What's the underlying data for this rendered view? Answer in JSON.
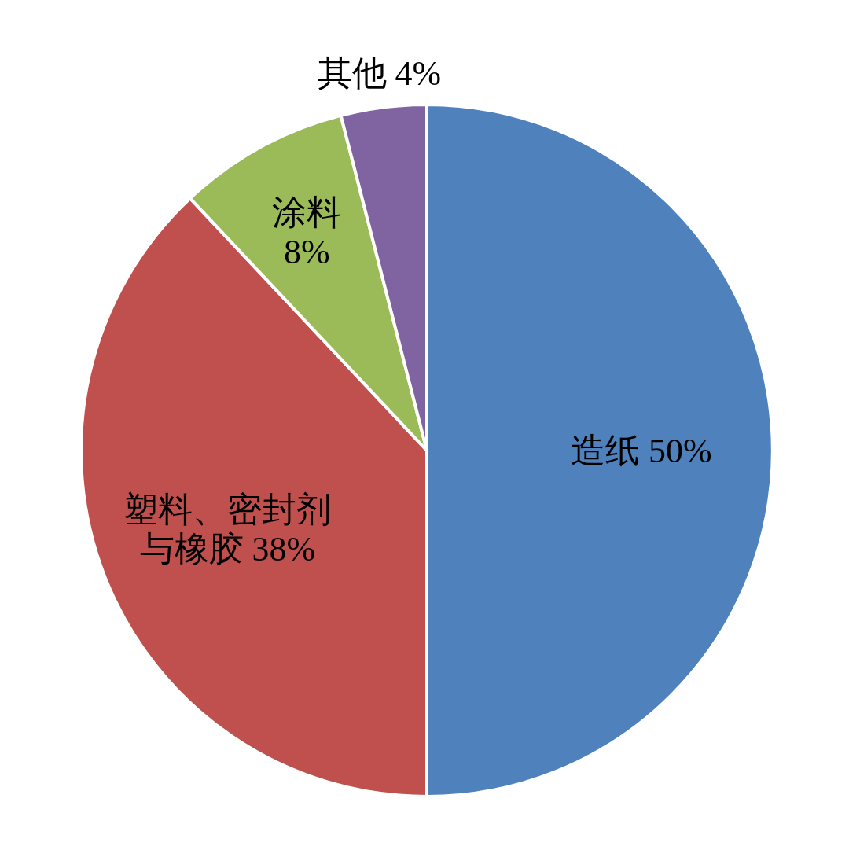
{
  "chart_data": {
    "type": "pie",
    "categories": [
      "造纸",
      "塑料、密封剂与橡胶",
      "涂料",
      "其他"
    ],
    "values": [
      50,
      38,
      8,
      4
    ],
    "value_labels": [
      "50%",
      "38%",
      "8%",
      "4%"
    ],
    "colors": [
      "#4f81bd",
      "#c0504d",
      "#9bbb59",
      "#8064a2"
    ],
    "legend": false
  }
}
